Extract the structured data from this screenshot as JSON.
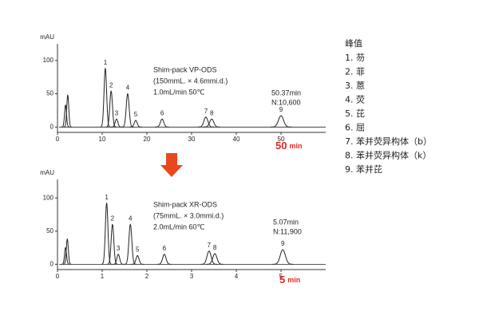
{
  "chart_data": [
    {
      "type": "chromatogram",
      "y_label": "mAU",
      "x": [
        1.8,
        2.3,
        10.7,
        12.0,
        13.2,
        15.7,
        17.5,
        23.4,
        33.2,
        34.5,
        50.0
      ],
      "values": [
        33,
        48,
        88,
        54,
        12,
        50,
        10,
        12,
        15,
        12,
        17
      ],
      "labels": [
        null,
        null,
        "1",
        "2",
        "3",
        "4",
        "5",
        "6",
        "7",
        "8",
        "9"
      ],
      "xlim": [
        0,
        60
      ],
      "xticks": [
        0,
        10,
        20,
        30,
        40,
        50
      ],
      "ylim": [
        -8,
        125
      ],
      "yticks": [
        0,
        50,
        100
      ],
      "color": "#222222",
      "column": [
        "Shim-pack VP-ODS",
        "(150mmL. × 4.6mmi.d.)",
        "1.0mL/min    50℃"
      ],
      "peak_note": [
        "50.37min",
        "N:10,600"
      ],
      "time_value": "50",
      "time_unit": "min"
    },
    {
      "type": "chromatogram",
      "y_label": "mAU",
      "x": [
        0.18,
        0.22,
        1.1,
        1.23,
        1.36,
        1.63,
        1.79,
        2.39,
        3.39,
        3.52,
        5.04
      ],
      "values": [
        25,
        38,
        92,
        60,
        15,
        60,
        13,
        15,
        20,
        16,
        22
      ],
      "labels": [
        null,
        null,
        "1",
        "2",
        "3",
        "4",
        "5",
        "6",
        "7",
        "8",
        "9"
      ],
      "xlim": [
        0,
        6
      ],
      "xticks": [
        0,
        1,
        2,
        3,
        4,
        5
      ],
      "ylim": [
        -8,
        128
      ],
      "yticks": [
        0,
        50,
        100
      ],
      "color": "#222222",
      "column": [
        "Shim-pack XR-ODS",
        "(75mmL. × 3.0mmi.d.)",
        "2.0mL/min    60℃"
      ],
      "peak_note": [
        "5.07min",
        "N:11,900"
      ],
      "time_value": "5",
      "time_unit": "min"
    }
  ],
  "peak_list": {
    "title": "峰值",
    "items": [
      "1. 芴",
      "2. 菲",
      "3. 蒽",
      "4. 荧",
      "5. 芘",
      "6. 屈",
      "7. 苯并荧异构体（b）",
      "8. 苯并荧异构体（k）",
      "9. 苯并芘"
    ]
  }
}
